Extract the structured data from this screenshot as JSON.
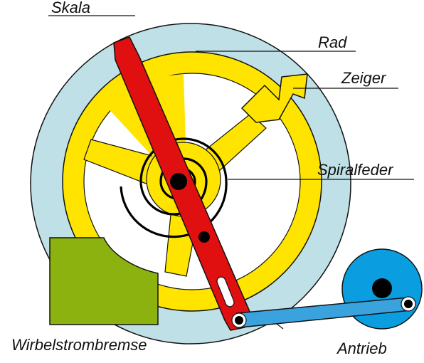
{
  "labels": {
    "skala": "Skala",
    "rad": "Rad",
    "zeiger": "Zeiger",
    "spiralfeder": "Spiralfeder",
    "wirbelstrombremse": "Wirbelstrombremse",
    "antrieb": "Antrieb"
  },
  "colors": {
    "skala": "#bfe0e6",
    "rad": "#ffe400",
    "zeiger": "#ffe400",
    "arm": "#e01010",
    "bremse": "#8bb20f",
    "antrieb": "#0a9ee0",
    "kurbel": "#3aa3dd",
    "spiralfeder": "#000000",
    "outline": "#111111"
  },
  "icons": [
    "rotary-scale",
    "wheel",
    "pointer",
    "spiral-spring",
    "eddy-current-brake",
    "drive-disk",
    "red-lever-arm",
    "crank-rod"
  ]
}
